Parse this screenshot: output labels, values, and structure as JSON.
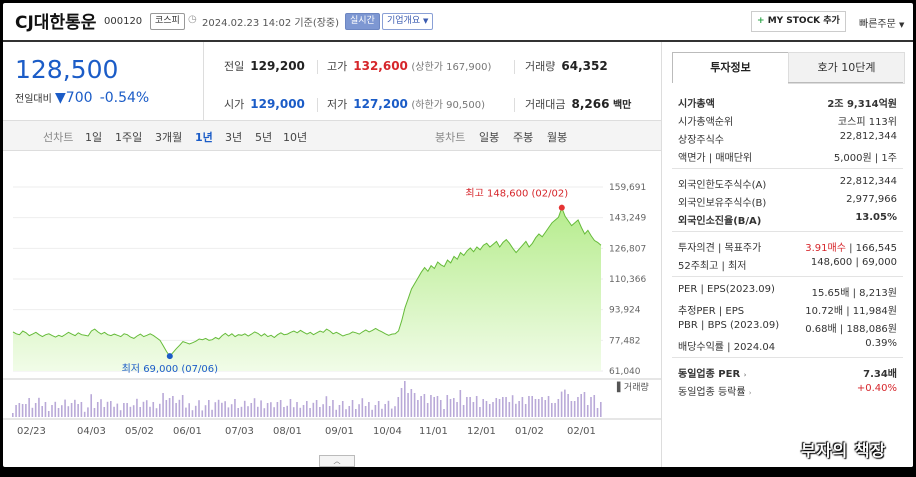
{
  "header": {
    "name": "CJ대한통운",
    "code": "000120",
    "market": "코스피",
    "datetime": "2024.02.23 14:02 기준(장중)",
    "live": "실시간",
    "company_info": "기업개요",
    "mystock_label": "MY STOCK 추가",
    "quick_order": "빠른주문"
  },
  "price": {
    "current": "128,500",
    "change_label": "전일대비",
    "change": "700",
    "change_pct": "-0.54%"
  },
  "stats": {
    "prev_label": "전일",
    "prev": "129,200",
    "high_label": "고가",
    "high": "132,600",
    "upper_limit": "(상한가 167,900)",
    "volume_label": "거래량",
    "volume": "64,352",
    "open_label": "시가",
    "open": "129,000",
    "low_label": "저가",
    "low": "127,200",
    "lower_limit": "(하한가 90,500)",
    "amount_label": "거래대금",
    "amount": "8,266",
    "amount_unit": "백만"
  },
  "periods": {
    "line_label": "선차트",
    "items": [
      "1일",
      "1주일",
      "3개월",
      "1년",
      "3년",
      "5년",
      "10년"
    ],
    "active": "1년",
    "candle_label": "봉차트",
    "candle_items": [
      "일봉",
      "주봉",
      "월봉"
    ]
  },
  "chart_data": {
    "type": "area",
    "y_ticks": [
      "159,691",
      "143,249",
      "126,807",
      "110,366",
      "93,924",
      "77,482",
      "61,040"
    ],
    "ylim": [
      61040,
      159691
    ],
    "x_ticks": [
      "02/23",
      "04/03",
      "05/02",
      "06/01",
      "07/03",
      "08/01",
      "09/01",
      "10/04",
      "11/01",
      "12/01",
      "01/02",
      "02/01"
    ],
    "high_annotation": "최고 148,600 (02/02)",
    "low_annotation": "최저 69,000 (07/06)",
    "volume_label": "거래량",
    "high": 148600,
    "low": 69000,
    "values": [
      82000,
      81000,
      80500,
      82500,
      81500,
      80000,
      80800,
      81800,
      80500,
      79500,
      80500,
      81000,
      80000,
      79200,
      80200,
      79500,
      80600,
      81800,
      80800,
      80000,
      81500,
      80500,
      80200,
      79800,
      82500,
      83500,
      82000,
      80800,
      81800,
      80500,
      80000,
      80800,
      80200,
      79500,
      81000,
      80500,
      79200,
      78500,
      79800,
      80800,
      79500,
      80200,
      81000,
      80000,
      78800,
      77500,
      74500,
      71500,
      69000,
      71000,
      73000,
      74800,
      76800,
      76200,
      75500,
      76200,
      77000,
      78200,
      77800,
      78500,
      77500,
      77800,
      79000,
      78200,
      80000,
      81200,
      79800,
      81000,
      79500,
      80500,
      80200,
      81000,
      79800,
      80800,
      82000,
      81200,
      79800,
      81000,
      79500,
      80200,
      79000,
      80500,
      81500,
      80500,
      80800,
      81800,
      82500,
      81500,
      82800,
      81800,
      80800,
      81800,
      80500,
      81500,
      82500,
      81800,
      83500,
      82500,
      81000,
      81800,
      80800,
      79800,
      80500,
      81000,
      82000,
      81500,
      80800,
      82000,
      83000,
      82000,
      82800,
      83800,
      82800,
      82000,
      81000,
      80200,
      80800,
      81000,
      82500,
      88000,
      95000,
      100000,
      105000,
      108000,
      111000,
      114000,
      116500,
      114500,
      117500,
      116000,
      119500,
      118000,
      117000,
      120500,
      119000,
      122500,
      121000,
      124500,
      123000,
      125500,
      127000,
      125000,
      127500,
      126000,
      128500,
      129500,
      127500,
      129000,
      130500,
      127500,
      130000,
      131500,
      129500,
      126800,
      124500,
      126500,
      128500,
      130500,
      127500,
      129500,
      132500,
      134500,
      133000,
      135500,
      138000,
      140500,
      142000,
      143500,
      148600,
      144000,
      141500,
      139000,
      140500,
      142000,
      138000,
      134500,
      136500,
      133500,
      131000,
      130000,
      128500
    ]
  },
  "side": {
    "tab_invest": "투자정보",
    "tab_orderbook": "호가 10단계",
    "group1": [
      {
        "k": "시가총액",
        "v": "2조 9,314억원",
        "bold": true
      },
      {
        "k": "시가총액순위",
        "v": "코스피 113위"
      },
      {
        "k": "상장주식수",
        "v": "22,812,344"
      },
      {
        "k": "액면가 | 매매단위",
        "v": "5,000원 | 1주"
      }
    ],
    "group2": [
      {
        "k": "외국인한도주식수(A)",
        "v": "22,812,344"
      },
      {
        "k": "외국인보유주식수(B)",
        "v": "2,977,966"
      },
      {
        "k": "외국인소진율(B/A)",
        "v": "13.05%",
        "bold": true
      }
    ],
    "group3_opinion_label": "투자의견 | 목표주가",
    "group3_opinion": "3.91매수",
    "group3_target": "| 166,545",
    "group3_52w_label": "52주최고 | 최저",
    "group3_52w": "148,600 | 69,000",
    "group4": [
      {
        "k": "PER | EPS(2023.09)",
        "v": "15.65배 | 8,213원"
      },
      {
        "k": "추정PER | EPS",
        "v": "10.72배 | 11,984원"
      },
      {
        "k": "PBR | BPS (2023.09)",
        "v": "0.68배 | 188,086원"
      },
      {
        "k": "배당수익률 | 2024.04",
        "v": "0.39%"
      }
    ],
    "sector_per_label": "동일업종 PER",
    "sector_per": "7.34배",
    "sector_rate_label": "동일업종 등락률",
    "sector_rate": "+0.40%"
  },
  "watermark": "부자의 책장"
}
